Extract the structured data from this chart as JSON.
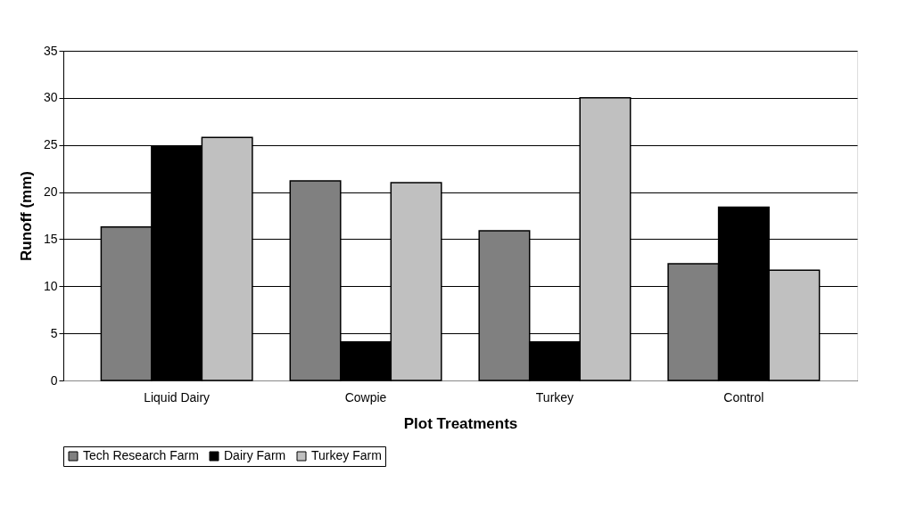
{
  "chart_data": {
    "type": "bar",
    "xlabel": "Plot Treatments",
    "ylabel": "Runoff (mm)",
    "categories": [
      "Liquid Dairy",
      "Cowpie",
      "Turkey",
      "Control"
    ],
    "series": [
      {
        "name": "Tech Research Farm",
        "color": "#808080",
        "values": [
          16.3,
          21.2,
          15.9,
          12.4
        ]
      },
      {
        "name": "Dairy Farm",
        "color": "#000000",
        "values": [
          24.9,
          4.1,
          4.1,
          18.4
        ]
      },
      {
        "name": "Turkey Farm",
        "color": "#c0c0c0",
        "values": [
          25.8,
          21.0,
          30.0,
          11.7
        ]
      }
    ],
    "ylim": [
      0,
      35
    ],
    "yticks": [
      0,
      5,
      10,
      15,
      20,
      25,
      30,
      35
    ],
    "grid": "y",
    "legend": "bottom"
  }
}
